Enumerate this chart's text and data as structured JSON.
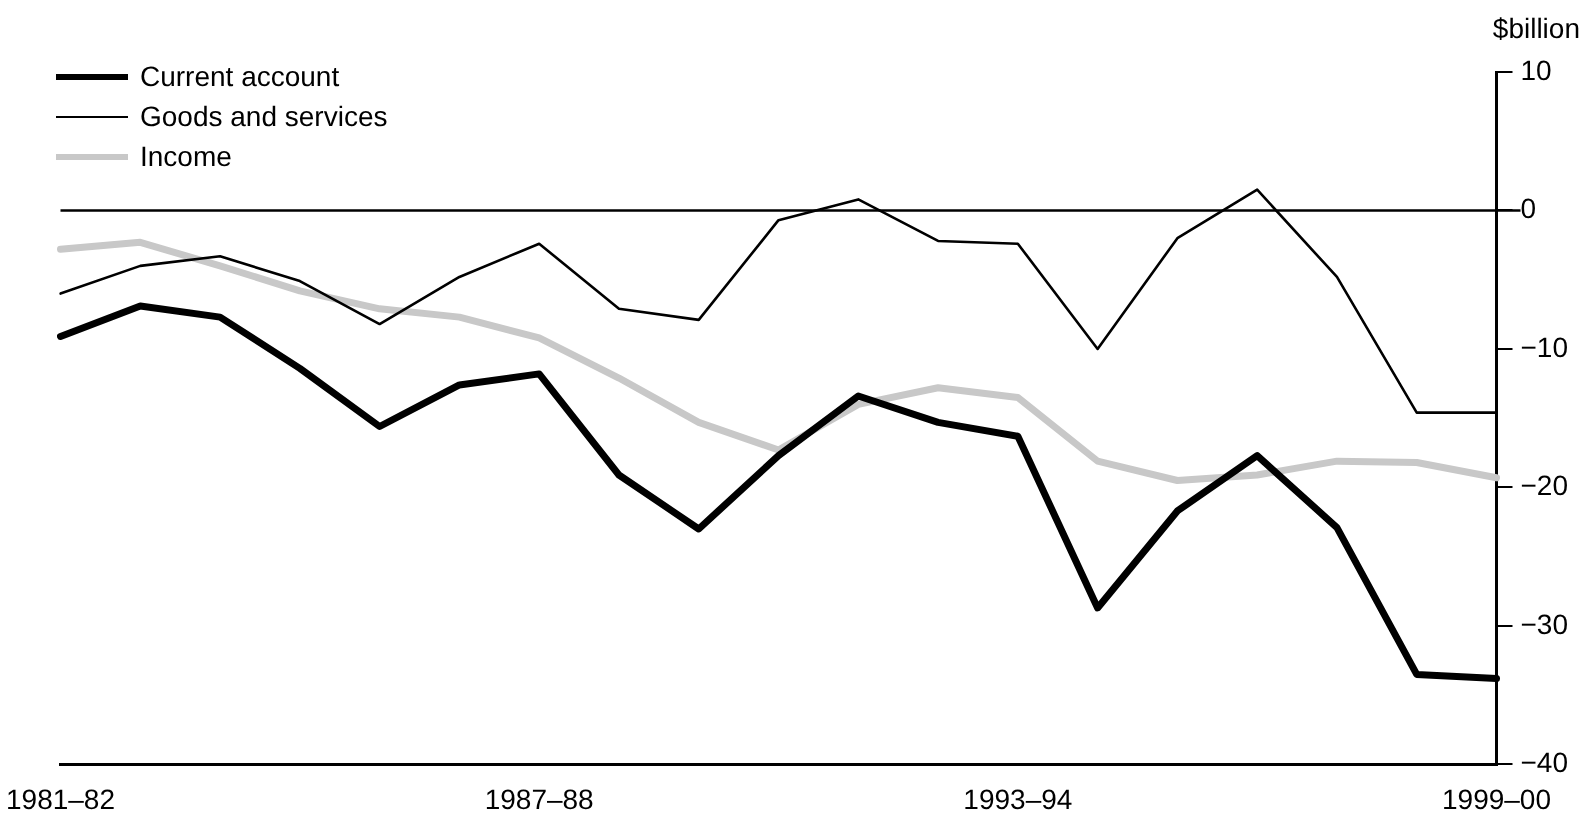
{
  "chart_data": {
    "type": "line",
    "ylabel": "$billion",
    "categories": [
      "1981–82",
      null,
      null,
      null,
      null,
      null,
      "1987–88",
      null,
      null,
      null,
      null,
      null,
      "1993–94",
      null,
      null,
      null,
      null,
      null,
      "1999–00"
    ],
    "series": [
      {
        "name": "Current account",
        "color": "#000000",
        "values": [
          -9.1,
          -6.9,
          -7.7,
          -11.4,
          -15.6,
          -12.6,
          -11.8,
          -19.1,
          -23.0,
          -17.7,
          -13.4,
          -15.3,
          -16.3,
          -28.7,
          -21.7,
          -17.7,
          -22.9,
          -33.5,
          -33.8
        ]
      },
      {
        "name": "Goods and services",
        "color": "#000000",
        "values": [
          -6.0,
          -4.0,
          -3.3,
          -5.1,
          -8.2,
          -4.8,
          -2.4,
          -7.1,
          -7.9,
          -0.7,
          0.8,
          -2.2,
          -2.4,
          -10.0,
          -2.0,
          1.5,
          -4.8,
          -14.6,
          -14.6
        ]
      },
      {
        "name": "Income",
        "color": "#c8c8c8",
        "values": [
          -2.8,
          -2.3,
          -4.0,
          -5.8,
          -7.1,
          -7.7,
          -9.2,
          -12.1,
          -15.3,
          -17.3,
          -14.0,
          -12.8,
          -13.5,
          -18.1,
          -19.5,
          -19.1,
          -18.1,
          -18.2,
          -19.3
        ]
      }
    ],
    "ylim": [
      -40,
      10
    ],
    "yticks": [
      {
        "value": -40,
        "label": "−40"
      },
      {
        "value": -30,
        "label": "−30"
      },
      {
        "value": -20,
        "label": "−20"
      },
      {
        "value": -10,
        "label": "−10"
      },
      0,
      10
    ],
    "ref_lines": [
      {
        "axis": "y",
        "value": 0,
        "color": "#000000"
      }
    ],
    "grid": false,
    "legend": "top left",
    "marker": "none",
    "line_style": "solid"
  }
}
